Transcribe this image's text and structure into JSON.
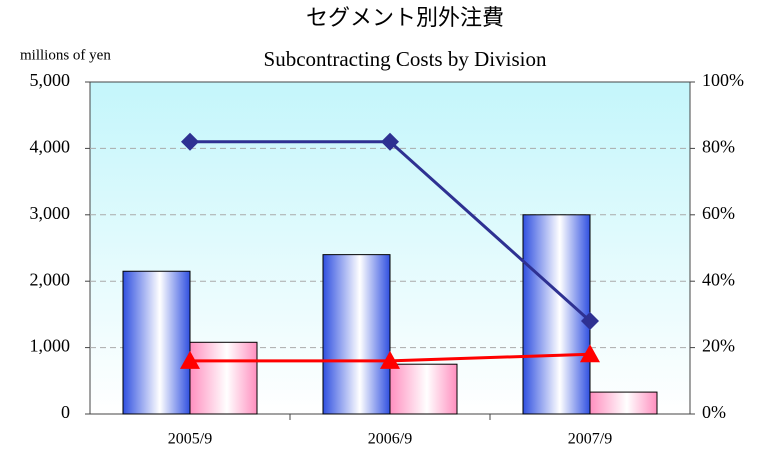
{
  "chart_data": {
    "type": "bar",
    "title": "セグメント別外注費",
    "subtitle": "Subcontracting Costs by Division",
    "y_label": "millions of yen",
    "categories": [
      "2005/9",
      "2006/9",
      "2007/9"
    ],
    "series": [
      {
        "type": "bar",
        "color": "#3050e0",
        "values": [
          2150,
          2400,
          3000
        ]
      },
      {
        "type": "bar",
        "color": "#ff8fbf",
        "values": [
          1080,
          750,
          330
        ]
      },
      {
        "type": "line",
        "axis": "y2",
        "color": "#2e3192",
        "marker": "diamond",
        "values": [
          82,
          82,
          28
        ]
      },
      {
        "type": "line",
        "axis": "y2",
        "color": "#ff0000",
        "marker": "triangle",
        "values": [
          16,
          16,
          18
        ]
      }
    ],
    "ylim": [
      0,
      5000
    ],
    "yticks": [
      0,
      {
        "value": 1000,
        "label": "1,000"
      },
      {
        "value": 2000,
        "label": "2,000"
      },
      {
        "value": 3000,
        "label": "3,000"
      },
      {
        "value": 4000,
        "label": "4,000"
      },
      {
        "value": 5000,
        "label": "5,000"
      }
    ],
    "y2lim": [
      0,
      100
    ],
    "y2ticks": [
      {
        "value": 0,
        "label": "0%"
      },
      {
        "value": 20,
        "label": "20%"
      },
      {
        "value": 40,
        "label": "40%"
      },
      {
        "value": 60,
        "label": "60%"
      },
      {
        "value": 80,
        "label": "80%"
      },
      {
        "value": 100,
        "label": "100%"
      }
    ],
    "grid": true
  }
}
